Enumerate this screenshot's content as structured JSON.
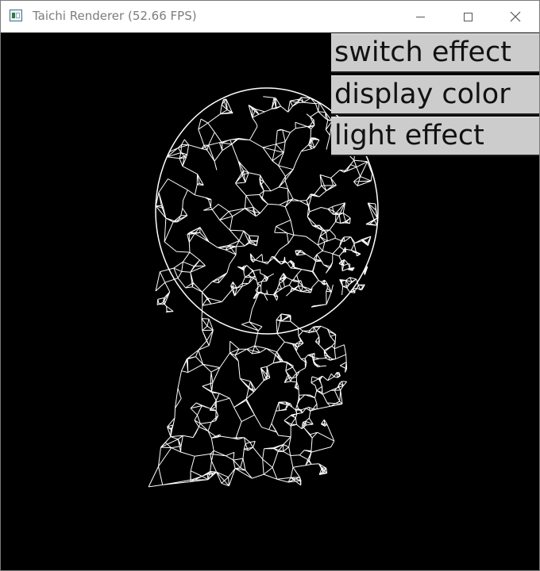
{
  "window": {
    "title": "Taichi Renderer (52.66 FPS)"
  },
  "titlebar_controls": {
    "minimize": "minimize-icon",
    "maximize": "maximize-icon",
    "close": "close-icon"
  },
  "gui": {
    "buttons": [
      {
        "label": "switch effect"
      },
      {
        "label": "display color"
      },
      {
        "label": "light effect"
      }
    ]
  },
  "viewport": {
    "background": "#000000",
    "mesh_color": "#ffffff",
    "content": "wireframe head mesh"
  }
}
